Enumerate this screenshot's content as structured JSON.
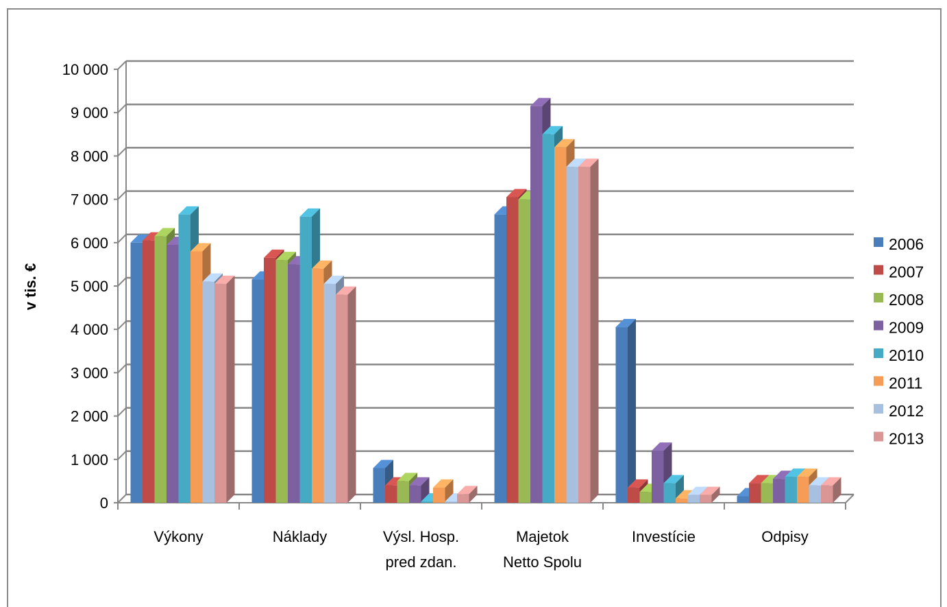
{
  "chart_data": {
    "type": "bar",
    "ylabel": "v tis. €",
    "ylim": [
      0,
      10000
    ],
    "yticks": [
      0,
      1000,
      2000,
      3000,
      4000,
      5000,
      6000,
      7000,
      8000,
      9000,
      10000
    ],
    "ytick_labels": [
      "0",
      "1 000",
      "2 000",
      "3 000",
      "4 000",
      "5 000",
      "6 000",
      "7 000",
      "8 000",
      "9 000",
      "10 000"
    ],
    "grid": true,
    "legend_position": "right",
    "categories": [
      [
        "Výkony"
      ],
      [
        "Náklady"
      ],
      [
        "Výsl. Hosp.",
        "pred zdan."
      ],
      [
        "Majetok",
        "Netto Spolu"
      ],
      [
        "Investície"
      ],
      [
        "Odpisy"
      ]
    ],
    "series": [
      {
        "name": "2006",
        "color": "#4a7ebb",
        "values": [
          6000,
          5150,
          800,
          6650,
          4050,
          150
        ]
      },
      {
        "name": "2007",
        "color": "#be4b48",
        "values": [
          6050,
          5650,
          400,
          7050,
          350,
          450
        ]
      },
      {
        "name": "2008",
        "color": "#98b954",
        "values": [
          6150,
          5600,
          500,
          7000,
          250,
          450
        ]
      },
      {
        "name": "2009",
        "color": "#7d60a0",
        "values": [
          5950,
          5500,
          400,
          9150,
          1200,
          550
        ]
      },
      {
        "name": "2010",
        "color": "#46aac5",
        "values": [
          6650,
          6600,
          30,
          8500,
          450,
          600
        ]
      },
      {
        "name": "2011",
        "color": "#f59d56",
        "values": [
          5800,
          5400,
          350,
          8200,
          100,
          600
        ]
      },
      {
        "name": "2012",
        "color": "#a7c0e0",
        "values": [
          5100,
          5050,
          30,
          7750,
          180,
          400
        ]
      },
      {
        "name": "2013",
        "color": "#d99694",
        "values": [
          5050,
          4800,
          200,
          7750,
          180,
          400
        ]
      }
    ]
  }
}
